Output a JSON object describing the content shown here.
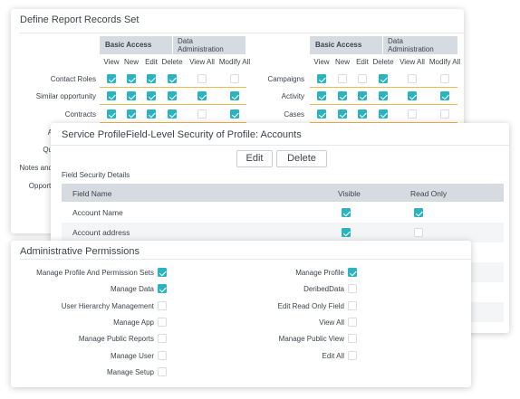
{
  "report": {
    "title": "Define Report Records Set",
    "group_basic": "Basic Access",
    "group_admin_line1": "Data",
    "group_admin_line2": "Administration",
    "columns": [
      "View",
      "New",
      "Edit",
      "Delete",
      "View All",
      "Modify All"
    ],
    "left_rows": [
      {
        "label": "Contact Roles",
        "checks": [
          true,
          true,
          true,
          true,
          false,
          false
        ]
      },
      {
        "label": "Similar opportunity",
        "checks": [
          true,
          true,
          true,
          true,
          true,
          true
        ]
      },
      {
        "label": "Contracts",
        "checks": [
          true,
          true,
          true,
          true,
          false,
          true
        ]
      }
    ],
    "right_rows": [
      {
        "label": "Campaigns",
        "checks": [
          true,
          false,
          false,
          true,
          false,
          false
        ]
      },
      {
        "label": "Activity",
        "checks": [
          true,
          true,
          true,
          true,
          true,
          true
        ]
      },
      {
        "label": "Cases",
        "checks": [
          true,
          true,
          true,
          true,
          false,
          false
        ]
      }
    ],
    "partial_labels": [
      "A",
      "Qu",
      "Notes and",
      "Opporti"
    ]
  },
  "fls": {
    "title": "Service ProfileField-Level Security of Profile:  Accounts",
    "edit_label": "Edit",
    "delete_label": "Delete",
    "section_label": "Field Security Details",
    "col_field": "Field Name",
    "col_visible": "Visible",
    "col_readonly": "Read Only",
    "rows": [
      {
        "name": "Account Name",
        "visible": true,
        "read_only": true
      },
      {
        "name": "Account address",
        "visible": true,
        "read_only": false
      }
    ]
  },
  "admin": {
    "title": "Administrative Permissions",
    "left": [
      {
        "label": "Manage Profile And Permission Sets",
        "checked": true
      },
      {
        "label": "Manage Data",
        "checked": true
      },
      {
        "label": "User Hierarchy Management",
        "checked": false
      },
      {
        "label": "Manage App",
        "checked": false
      },
      {
        "label": "Manage Public Reports",
        "checked": false
      },
      {
        "label": "Manage User",
        "checked": false
      },
      {
        "label": "Manage Setup",
        "checked": false
      }
    ],
    "right": [
      {
        "label": "Manage Profile",
        "checked": true
      },
      {
        "label": "DeribedData",
        "checked": false
      },
      {
        "label": "Edit Read Only Field",
        "checked": false
      },
      {
        "label": "View All",
        "checked": false
      },
      {
        "label": "Manage Public View",
        "checked": false
      },
      {
        "label": "Edit All",
        "checked": false
      }
    ]
  },
  "colors": {
    "accent": "#2bb3c0",
    "header_bg": "#d6dbe2",
    "row_line": "#f3b74e"
  }
}
